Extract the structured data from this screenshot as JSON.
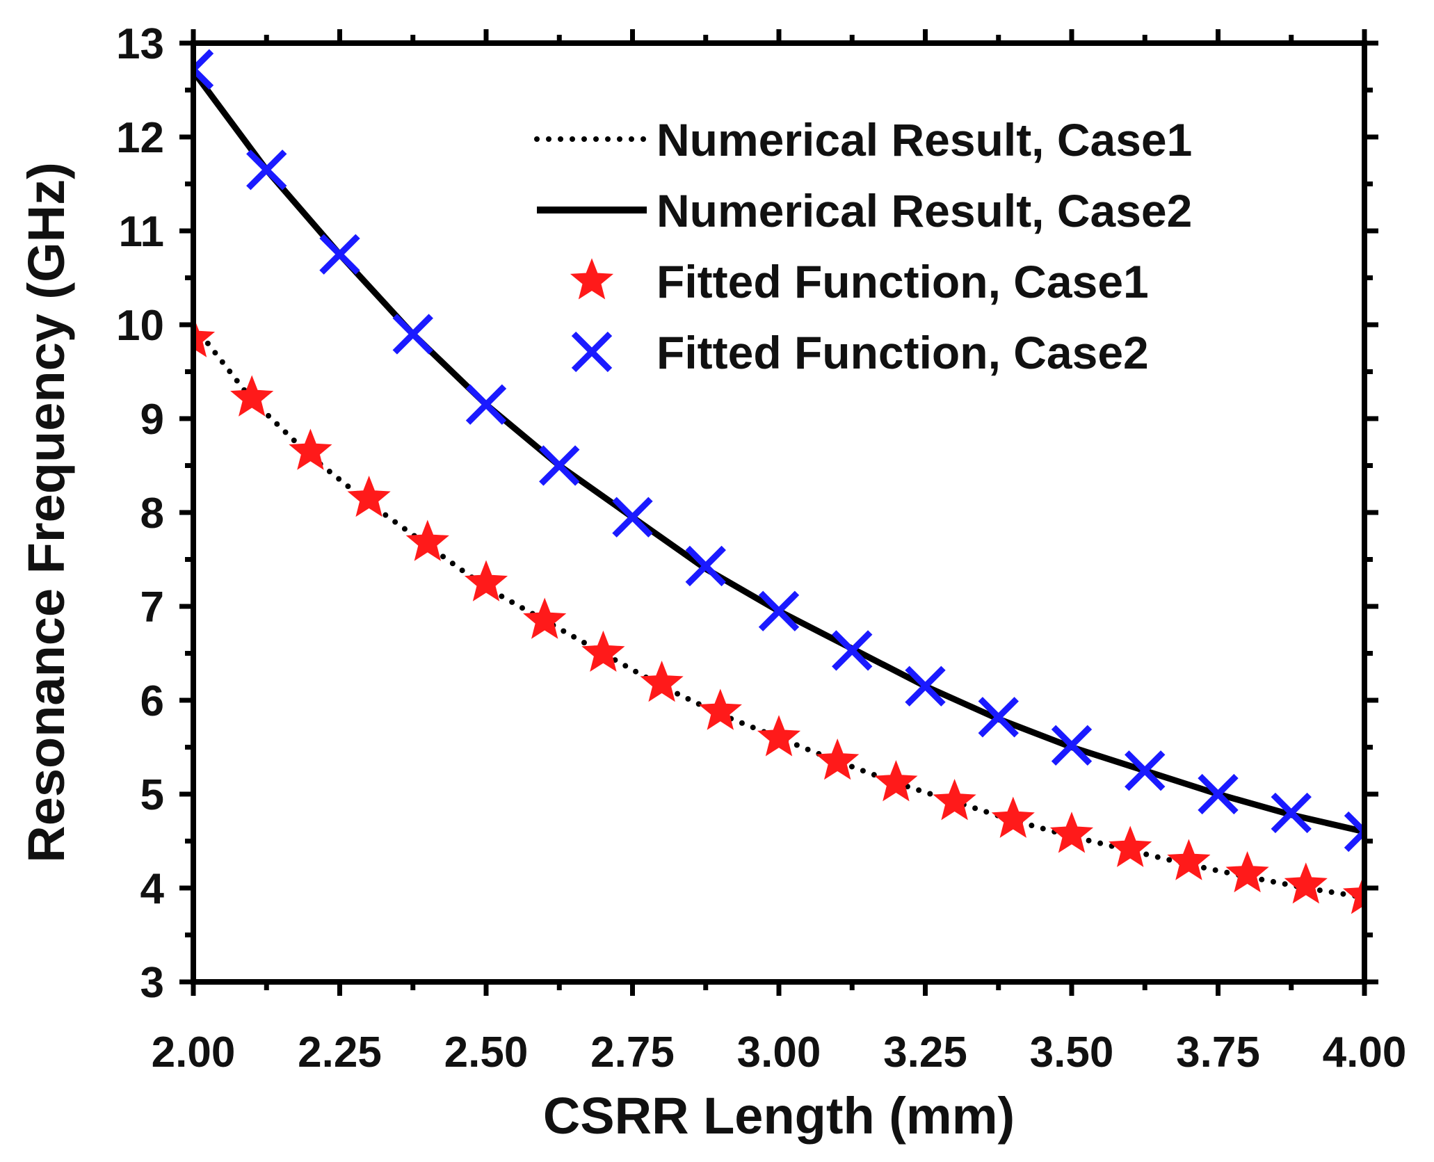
{
  "chart_data": {
    "type": "line",
    "xlabel": "CSRR Length (mm)",
    "ylabel": "Resonance Frequency (GHz)",
    "xlim": [
      2.0,
      4.0
    ],
    "ylim": [
      3,
      13
    ],
    "x_ticks": [
      2.0,
      2.25,
      2.5,
      2.75,
      3.0,
      3.25,
      3.5,
      3.75,
      4.0
    ],
    "x_tick_labels": [
      "2.00",
      "2.25",
      "2.50",
      "2.75",
      "3.00",
      "3.25",
      "3.50",
      "3.75",
      "4.00"
    ],
    "y_ticks": [
      3,
      4,
      5,
      6,
      7,
      8,
      9,
      10,
      11,
      12,
      13
    ],
    "y_tick_labels": [
      "3",
      "4",
      "5",
      "6",
      "7",
      "8",
      "9",
      "10",
      "11",
      "12",
      "13"
    ],
    "grid": false,
    "legend_position": "top-right",
    "series": [
      {
        "name": "Numerical Result, Case1",
        "style": "dotted-line",
        "color": "#000000",
        "x": [
          2.0,
          2.1,
          2.2,
          2.3,
          2.4,
          2.5,
          2.6,
          2.7,
          2.8,
          2.9,
          3.0,
          3.1,
          3.2,
          3.3,
          3.4,
          3.5,
          3.6,
          3.7,
          3.8,
          3.9,
          4.0
        ],
        "y": [
          10.0,
          9.2,
          8.6,
          8.1,
          7.65,
          7.2,
          6.85,
          6.5,
          6.15,
          5.85,
          5.6,
          5.35,
          5.12,
          4.92,
          4.72,
          4.55,
          4.4,
          4.25,
          4.12,
          4.0,
          3.9
        ]
      },
      {
        "name": "Numerical Result, Case2",
        "style": "solid-line",
        "color": "#000000",
        "x": [
          2.0,
          2.125,
          2.25,
          2.375,
          2.5,
          2.625,
          2.75,
          2.875,
          3.0,
          3.125,
          3.25,
          3.375,
          3.5,
          3.625,
          3.75,
          3.875,
          4.0
        ],
        "y": [
          12.7,
          11.65,
          10.75,
          9.9,
          9.15,
          8.5,
          7.95,
          7.4,
          6.95,
          6.55,
          6.15,
          5.8,
          5.5,
          5.25,
          5.0,
          4.78,
          4.6
        ]
      },
      {
        "name": "Fitted Function, Case1",
        "style": "star-markers",
        "color": "#ff1a1a",
        "x": [
          2.0,
          2.1,
          2.2,
          2.3,
          2.4,
          2.5,
          2.6,
          2.7,
          2.8,
          2.9,
          3.0,
          3.1,
          3.2,
          3.3,
          3.4,
          3.5,
          3.6,
          3.7,
          3.8,
          3.9,
          4.0
        ],
        "y": [
          9.85,
          9.22,
          8.65,
          8.15,
          7.68,
          7.25,
          6.85,
          6.5,
          6.18,
          5.88,
          5.6,
          5.35,
          5.12,
          4.92,
          4.73,
          4.57,
          4.42,
          4.28,
          4.15,
          4.03,
          3.92
        ]
      },
      {
        "name": "Fitted Function, Case2",
        "style": "x-markers",
        "color": "#1a1aff",
        "x": [
          2.0,
          2.125,
          2.25,
          2.375,
          2.5,
          2.625,
          2.75,
          2.875,
          3.0,
          3.125,
          3.25,
          3.375,
          3.5,
          3.625,
          3.75,
          3.875,
          4.0
        ],
        "y": [
          12.72,
          11.65,
          10.75,
          9.9,
          9.15,
          8.5,
          7.95,
          7.43,
          6.95,
          6.53,
          6.15,
          5.82,
          5.52,
          5.25,
          5.0,
          4.8,
          4.6
        ]
      }
    ]
  }
}
